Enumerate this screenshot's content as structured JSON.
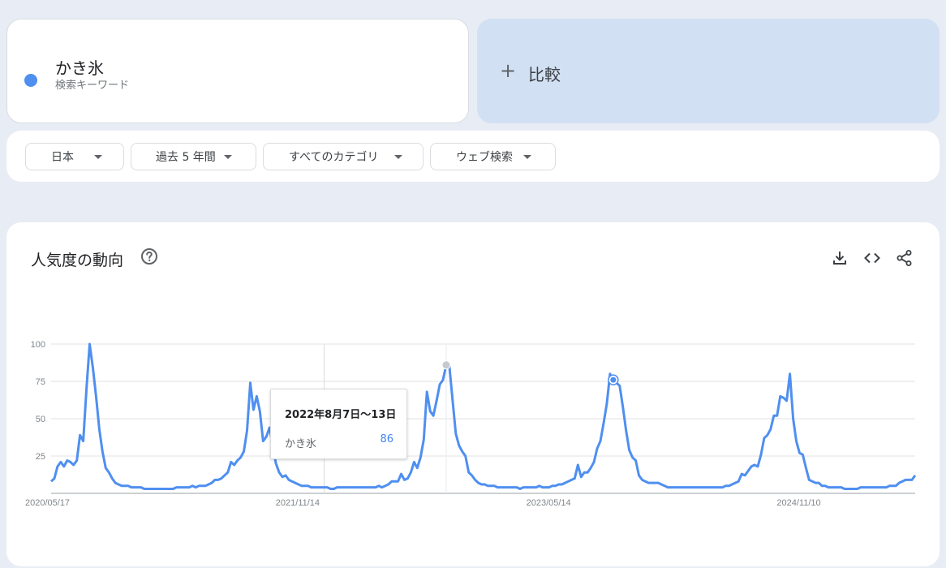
{
  "term": {
    "name": "かき氷",
    "type": "検索キーワード",
    "color": "#4f8ff0"
  },
  "compare": {
    "plus": "+",
    "label": "比較"
  },
  "filters": [
    {
      "label": "日本"
    },
    {
      "label": "過去 5 年間"
    },
    {
      "label": "すべてのカテゴリ"
    },
    {
      "label": "ウェブ検索"
    }
  ],
  "chart": {
    "title": "人気度の動向",
    "tooltip": {
      "date": "2022年8月7日〜13日",
      "term": "かき氷",
      "value": "86"
    }
  },
  "chart_data": {
    "type": "line",
    "ylim": [
      0,
      100
    ],
    "yticks": [
      "100",
      "75",
      "50",
      "25"
    ],
    "xticks": [
      "2020/05/17",
      "2021/11/14",
      "2023/05/14",
      "2024/11/10"
    ],
    "x_range": [
      "2020/05/17",
      "2025/05/11"
    ],
    "grid": true,
    "series": [
      {
        "name": "かき氷",
        "color": "#4f8ff0",
        "values": [
          8,
          10,
          18,
          21,
          18,
          22,
          21,
          19,
          22,
          39,
          35,
          70,
          100,
          84,
          65,
          43,
          28,
          17,
          14,
          10,
          7,
          6,
          5,
          5,
          5,
          4,
          4,
          4,
          4,
          3,
          3,
          3,
          3,
          3,
          3,
          3,
          3,
          3,
          3,
          4,
          4,
          4,
          4,
          4,
          5,
          4,
          5,
          5,
          5,
          6,
          7,
          9,
          9,
          10,
          12,
          14,
          21,
          19,
          22,
          24,
          28,
          42,
          74,
          56,
          65,
          55,
          35,
          38,
          44,
          32,
          20,
          14,
          11,
          12,
          9,
          8,
          7,
          6,
          5,
          5,
          5,
          4,
          4,
          4,
          4,
          4,
          4,
          3,
          3,
          4,
          4,
          4,
          4,
          4,
          4,
          4,
          4,
          4,
          4,
          4,
          4,
          4,
          5,
          4,
          5,
          6,
          8,
          8,
          8,
          13,
          9,
          10,
          14,
          21,
          17,
          24,
          36,
          68,
          55,
          52,
          62,
          73,
          76,
          86,
          85,
          62,
          40,
          32,
          28,
          25,
          14,
          12,
          9,
          7,
          6,
          6,
          5,
          5,
          5,
          4,
          4,
          4,
          4,
          4,
          4,
          4,
          3,
          4,
          4,
          4,
          4,
          4,
          5,
          4,
          4,
          4,
          5,
          5,
          6,
          6,
          7,
          8,
          9,
          10,
          19,
          11,
          14,
          14,
          17,
          21,
          30,
          35,
          47,
          60,
          80,
          76,
          74,
          72,
          58,
          42,
          29,
          24,
          22,
          12,
          9,
          8,
          7,
          7,
          7,
          7,
          6,
          5,
          4,
          4,
          4,
          4,
          4,
          4,
          4,
          4,
          4,
          4,
          4,
          4,
          4,
          4,
          4,
          4,
          4,
          4,
          5,
          5,
          6,
          7,
          8,
          13,
          12,
          15,
          18,
          19,
          18,
          26,
          37,
          39,
          43,
          52,
          52,
          65,
          64,
          62,
          80,
          50,
          35,
          27,
          26,
          17,
          9,
          8,
          7,
          7,
          5,
          5,
          4,
          4,
          4,
          4,
          4,
          3,
          3,
          3,
          3,
          3,
          4,
          4,
          4,
          4,
          4,
          4,
          4,
          4,
          4,
          5,
          5,
          5,
          7,
          8,
          9,
          9,
          9,
          12
        ]
      }
    ],
    "highlight_index": 123,
    "marker_index": 175
  }
}
